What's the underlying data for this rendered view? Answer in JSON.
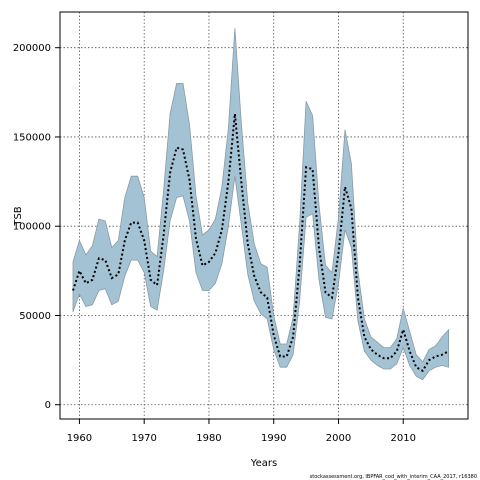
{
  "chart_data": {
    "type": "line",
    "xlabel": "Years",
    "ylabel": "TSB",
    "xlim": [
      1957,
      2020
    ],
    "ylim": [
      -8000,
      220000
    ],
    "x_ticks": [
      1960,
      1970,
      1980,
      1990,
      2000,
      2010
    ],
    "y_ticks": [
      0,
      50000,
      100000,
      150000,
      200000
    ],
    "grid": true,
    "band_color": "#a3c2d4",
    "band_edge_color": "#8a9aa5",
    "line_color": "#000000",
    "series": [
      {
        "x": [
          1959,
          1960,
          1961,
          1962,
          1963,
          1964,
          1965,
          1966,
          1967,
          1968,
          1969,
          1970,
          1971,
          1972,
          1973,
          1974,
          1975,
          1976,
          1977,
          1978,
          1979,
          1980,
          1981,
          1982,
          1983,
          1984,
          1985,
          1986,
          1987,
          1988,
          1989,
          1990,
          1991,
          1992,
          1993,
          1994,
          1995,
          1996,
          1997,
          1998,
          1999,
          2000,
          2001,
          2002,
          2003,
          2004,
          2005,
          2006,
          2007,
          2008,
          2009,
          2010,
          2011,
          2012,
          2013,
          2014,
          2015,
          2016,
          2017
        ],
        "values": [
          64000,
          75000,
          68000,
          70000,
          82000,
          81000,
          71000,
          73000,
          92000,
          102000,
          102000,
          92000,
          70000,
          67000,
          95000,
          130000,
          144000,
          143000,
          126000,
          93000,
          78000,
          80000,
          85000,
          98000,
          125000,
          163000,
          125000,
          90000,
          72000,
          63000,
          60000,
          39000,
          27000,
          27000,
          38000,
          78000,
          133000,
          132000,
          88000,
          63000,
          60000,
          85000,
          122000,
          110000,
          60000,
          38000,
          31000,
          28000,
          26000,
          26000,
          30000,
          42000,
          30000,
          21000,
          19000,
          25000,
          27000,
          28000,
          30000
        ],
        "lower": [
          52000,
          62000,
          55000,
          56000,
          64000,
          65000,
          56000,
          58000,
          72000,
          81000,
          81000,
          74000,
          55000,
          53000,
          75000,
          103000,
          116000,
          117000,
          103000,
          74000,
          64000,
          64000,
          68000,
          79000,
          100000,
          128000,
          101000,
          73000,
          58000,
          51000,
          48000,
          31000,
          21000,
          21000,
          28000,
          58000,
          105000,
          107000,
          70000,
          49000,
          48000,
          68000,
          98000,
          88000,
          47000,
          30000,
          25000,
          22000,
          20000,
          20000,
          23000,
          32000,
          22000,
          16000,
          14000,
          19000,
          21000,
          22000,
          21000
        ],
        "upper": [
          80000,
          92000,
          84000,
          89000,
          104000,
          103000,
          88000,
          92000,
          116000,
          128000,
          128000,
          116000,
          86000,
          83000,
          120000,
          163000,
          180000,
          180000,
          157000,
          117000,
          95000,
          98000,
          104000,
          122000,
          155000,
          211000,
          158000,
          113000,
          90000,
          79000,
          77000,
          50000,
          34000,
          34000,
          49000,
          101000,
          170000,
          162000,
          112000,
          78000,
          74000,
          105000,
          154000,
          135000,
          75000,
          48000,
          38000,
          35000,
          32000,
          32000,
          37000,
          54000,
          41000,
          28000,
          24000,
          31000,
          33000,
          38000,
          42000
        ]
      }
    ]
  },
  "footer_text": "stockassessment.org, IBPFAR_cod_with_interim_CAA_2017, r16380"
}
